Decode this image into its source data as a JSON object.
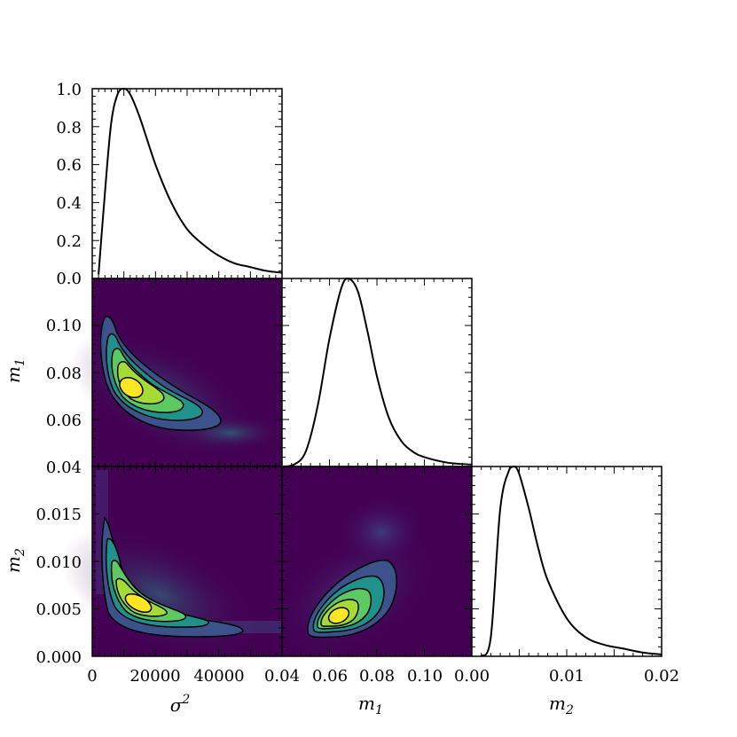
{
  "colors": {
    "background": "#440154",
    "viridis": [
      "#440154",
      "#3b528b",
      "#21918c",
      "#5ec962",
      "#fde725"
    ],
    "contour_line": "#000000",
    "curve": "#000000"
  },
  "chart_data": {
    "type": "corner",
    "parameters": [
      {
        "name": "sigma2",
        "label": "σ",
        "label_sup": "2",
        "range": [
          0,
          60000
        ],
        "tick_values": [
          0,
          20000,
          40000
        ],
        "tick_labels": [
          "0",
          "20000",
          "40000"
        ],
        "peak": 10000
      },
      {
        "name": "m1",
        "label": "m",
        "label_sub": "1",
        "range": [
          0.04,
          0.12
        ],
        "tick_values": [
          0.04,
          0.06,
          0.08,
          0.1
        ],
        "tick_labels": [
          "0.04",
          "0.06",
          "0.08",
          "0.10"
        ],
        "peak": 0.068
      },
      {
        "name": "m2",
        "label": "m",
        "label_sub": "2",
        "range": [
          0.0,
          0.02
        ],
        "tick_values": [
          0.0,
          0.01,
          0.02
        ],
        "tick_labels": [
          "0.00",
          "0.01",
          "0.02"
        ],
        "peak": 0.0043
      }
    ],
    "diagonal_ylim": [
      0,
      1.0
    ],
    "diagonal_yticks": [
      "0.0",
      "0.2",
      "0.4",
      "0.6",
      "0.8",
      "1.0"
    ],
    "row_tick_labels": {
      "m1": [
        "0.06",
        "0.08",
        "0.10"
      ],
      "m2": [
        "0.000",
        "0.005",
        "0.010",
        "0.015"
      ]
    },
    "marginals": {
      "sigma2": {
        "x": [
          2000,
          4000,
          6000,
          8000,
          10000,
          12000,
          15000,
          20000,
          25000,
          30000,
          35000,
          40000,
          45000,
          50000,
          55000,
          60000
        ],
        "y": [
          0.02,
          0.45,
          0.82,
          0.97,
          1.0,
          0.97,
          0.85,
          0.6,
          0.4,
          0.26,
          0.18,
          0.12,
          0.08,
          0.06,
          0.04,
          0.03
        ]
      },
      "m1": {
        "x": [
          0.04,
          0.045,
          0.05,
          0.055,
          0.06,
          0.065,
          0.068,
          0.072,
          0.076,
          0.08,
          0.085,
          0.09,
          0.095,
          0.1,
          0.11,
          0.12
        ],
        "y": [
          0.0,
          0.01,
          0.08,
          0.32,
          0.68,
          0.95,
          1.0,
          0.93,
          0.72,
          0.48,
          0.26,
          0.14,
          0.08,
          0.05,
          0.02,
          0.01
        ]
      },
      "m2": {
        "x": [
          0.001,
          0.002,
          0.003,
          0.004,
          0.0045,
          0.005,
          0.006,
          0.007,
          0.008,
          0.01,
          0.012,
          0.014,
          0.016,
          0.018,
          0.02
        ],
        "y": [
          0.0,
          0.1,
          0.78,
          0.99,
          1.0,
          0.96,
          0.78,
          0.57,
          0.4,
          0.2,
          0.1,
          0.06,
          0.04,
          0.02,
          0.01
        ]
      }
    },
    "joints": [
      {
        "x_param": "sigma2",
        "y_param": "m1",
        "peak": [
          11000,
          0.073
        ],
        "levels": 5
      },
      {
        "x_param": "sigma2",
        "y_param": "m2",
        "peak": [
          12000,
          0.0055
        ],
        "levels": 5
      },
      {
        "x_param": "m1",
        "y_param": "m2",
        "peak": [
          0.063,
          0.0043
        ],
        "levels": 5
      }
    ]
  }
}
